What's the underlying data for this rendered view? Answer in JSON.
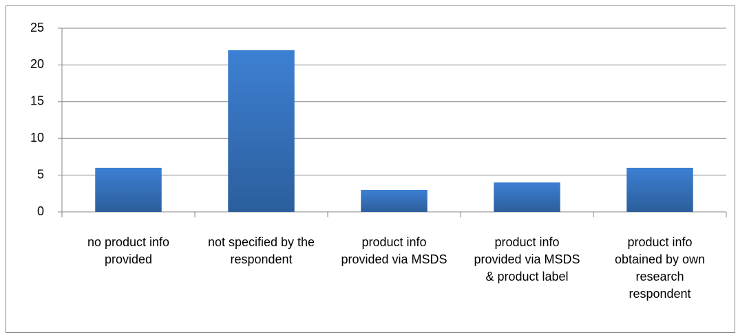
{
  "chart_data": {
    "type": "bar",
    "categories": [
      "no product info provided",
      "not specified by the respondent",
      "product info provided via MSDS",
      "product info provided via MSDS & product label",
      "product info obtained by own research respondent"
    ],
    "values": [
      6,
      22,
      3,
      4,
      6
    ],
    "color": "#3a77c2",
    "ylim": [
      0,
      25
    ],
    "yticks": [
      0,
      5,
      10,
      15,
      20,
      25
    ],
    "grid": true
  }
}
